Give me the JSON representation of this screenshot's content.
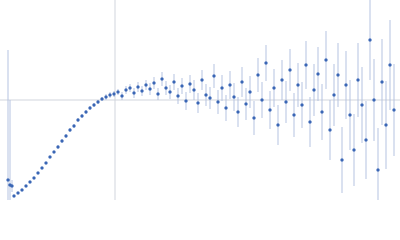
{
  "chart_data": {
    "type": "scatter",
    "xlim": [
      0,
      400
    ],
    "ylim": [
      0,
      200
    ],
    "ref_lines": {
      "x": [
        115
      ],
      "y": [
        100
      ],
      "color": "#d0d4dc"
    },
    "x": [
      8,
      10,
      12,
      14,
      18,
      22,
      26,
      30,
      34,
      38,
      42,
      46,
      50,
      54,
      58,
      62,
      66,
      70,
      74,
      78,
      82,
      86,
      90,
      94,
      98,
      102,
      106,
      110,
      114,
      118,
      122,
      126,
      130,
      134,
      138,
      142,
      146,
      150,
      154,
      158,
      162,
      166,
      170,
      174,
      178,
      182,
      186,
      190,
      194,
      198,
      202,
      206,
      210,
      214,
      218,
      222,
      226,
      230,
      234,
      238,
      242,
      246,
      250,
      254,
      258,
      262,
      266,
      270,
      274,
      278,
      282,
      286,
      290,
      294,
      298,
      302,
      306,
      310,
      314,
      318,
      322,
      326,
      330,
      334,
      338,
      342,
      346,
      350,
      354,
      358,
      362,
      366,
      370,
      374,
      378,
      382,
      386,
      390,
      394
    ],
    "color": "#3a66b5",
    "error_color": "#b4c3e0",
    "values": [
      20,
      15,
      14,
      4,
      7,
      10,
      14,
      18,
      22,
      27,
      32,
      37,
      43,
      48,
      53,
      59,
      64,
      70,
      74,
      80,
      84,
      88,
      92,
      95,
      98,
      101,
      103,
      105,
      106,
      108,
      104,
      110,
      112,
      107,
      113,
      109,
      115,
      111,
      117,
      106,
      121,
      112,
      108,
      118,
      104,
      114,
      99,
      116,
      110,
      97,
      120,
      105,
      102,
      124,
      98,
      112,
      92,
      115,
      103,
      88,
      118,
      96,
      108,
      82,
      125,
      100,
      137,
      90,
      112,
      75,
      120,
      98,
      130,
      85,
      115,
      95,
      135,
      78,
      110,
      126,
      88,
      140,
      70,
      105,
      125,
      40,
      115,
      85,
      50,
      120,
      95,
      60,
      160,
      100,
      30,
      118,
      75,
      135,
      90
    ],
    "errors": [
      130,
      85,
      6,
      1,
      1,
      1,
      1,
      1,
      1,
      1,
      1,
      1,
      1,
      1,
      2,
      2,
      2,
      2,
      2,
      2,
      2,
      2,
      2,
      2,
      2,
      2,
      3,
      3,
      3,
      3,
      4,
      4,
      4,
      5,
      5,
      5,
      5,
      6,
      6,
      6,
      7,
      7,
      7,
      8,
      8,
      8,
      9,
      9,
      10,
      10,
      10,
      11,
      11,
      12,
      12,
      13,
      13,
      14,
      14,
      15,
      15,
      16,
      16,
      17,
      17,
      18,
      18,
      19,
      19,
      20,
      20,
      21,
      21,
      22,
      22,
      23,
      24,
      25,
      26,
      27,
      28,
      29,
      30,
      31,
      32,
      33,
      34,
      35,
      36,
      37,
      38,
      39,
      40,
      41,
      42,
      43,
      44,
      45,
      46
    ]
  }
}
